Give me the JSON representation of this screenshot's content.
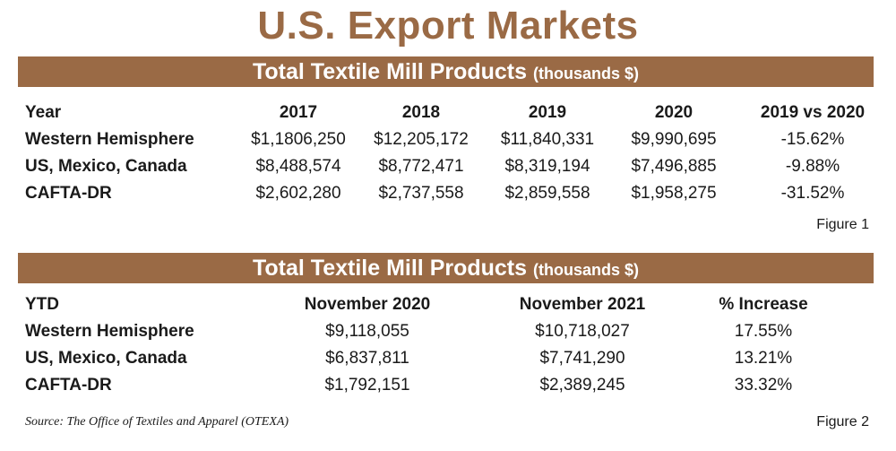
{
  "title": "U.S. Export Markets",
  "table1": {
    "heading": "Total Textile Mill Products",
    "units": "(thousands $)",
    "columns": [
      "Year",
      "2017",
      "2018",
      "2019",
      "2020",
      "2019 vs 2020"
    ],
    "rows": [
      {
        "label": "Western Hemisphere",
        "values": [
          "$1,1806,250",
          "$12,205,172",
          "$11,840,331",
          "$9,990,695",
          "-15.62%"
        ]
      },
      {
        "label": "US, Mexico, Canada",
        "values": [
          "$8,488,574",
          "$8,772,471",
          "$8,319,194",
          "$7,496,885",
          "-9.88%"
        ]
      },
      {
        "label": "CAFTA-DR",
        "values": [
          "$2,602,280",
          "$2,737,558",
          "$2,859,558",
          "$1,958,275",
          "-31.52%"
        ]
      }
    ],
    "figure": "Figure 1"
  },
  "table2": {
    "heading": "Total Textile Mill Products",
    "units": "(thousands $)",
    "columns": [
      "YTD",
      "November 2020",
      "November 2021",
      "% Increase"
    ],
    "rows": [
      {
        "label": "Western Hemisphere",
        "values": [
          "$9,118,055",
          "$10,718,027",
          "17.55%"
        ]
      },
      {
        "label": "US, Mexico, Canada",
        "values": [
          "$6,837,811",
          "$7,741,290",
          "13.21%"
        ]
      },
      {
        "label": "CAFTA-DR",
        "values": [
          "$1,792,151",
          "$2,389,245",
          "33.32%"
        ]
      }
    ],
    "figure": "Figure 2"
  },
  "source": "Source: The Office of Textiles and Apparel (OTEXA)",
  "colors": {
    "accent": "#9a6a45",
    "text": "#1a1a1a",
    "band_text": "#ffffff"
  }
}
